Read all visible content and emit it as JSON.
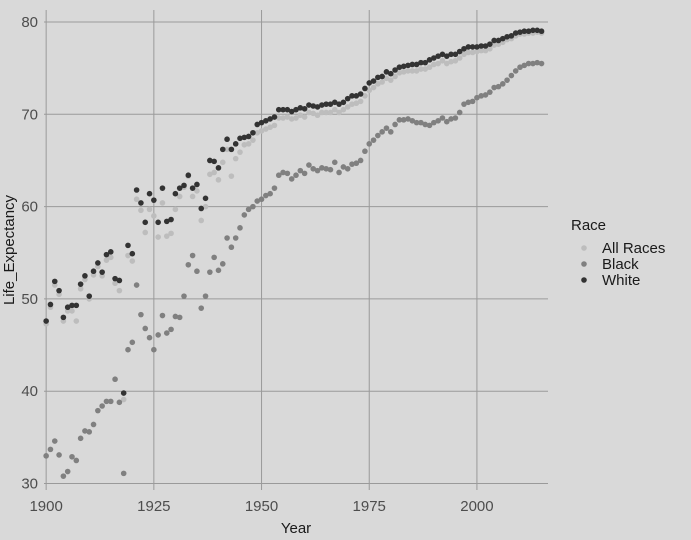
{
  "chart_data": {
    "type": "scatter",
    "title": "",
    "xlabel": "Year",
    "ylabel": "Life_Expectancy",
    "xlim": [
      1899.5,
      2016.5
    ],
    "ylim": [
      29.3,
      81.3
    ],
    "x_ticks": [
      1900,
      1925,
      1950,
      1975,
      2000
    ],
    "y_ticks": [
      30,
      40,
      50,
      60,
      70,
      80
    ],
    "grid": true,
    "legend": {
      "title": "Race",
      "position": "right"
    },
    "series": [
      {
        "name": "All Races",
        "color": "#bdbdbd",
        "x": [
          1900,
          1901,
          1902,
          1903,
          1904,
          1905,
          1906,
          1907,
          1908,
          1909,
          1910,
          1911,
          1912,
          1913,
          1914,
          1915,
          1916,
          1917,
          1918,
          1919,
          1920,
          1921,
          1922,
          1923,
          1924,
          1925,
          1926,
          1927,
          1928,
          1929,
          1930,
          1931,
          1932,
          1933,
          1934,
          1935,
          1936,
          1937,
          1938,
          1939,
          1940,
          1941,
          1942,
          1943,
          1944,
          1945,
          1946,
          1947,
          1948,
          1949,
          1950,
          1951,
          1952,
          1953,
          1954,
          1955,
          1956,
          1957,
          1958,
          1959,
          1960,
          1961,
          1962,
          1963,
          1964,
          1965,
          1966,
          1967,
          1968,
          1969,
          1970,
          1971,
          1972,
          1973,
          1974,
          1975,
          1976,
          1977,
          1978,
          1979,
          1980,
          1981,
          1982,
          1983,
          1984,
          1985,
          1986,
          1987,
          1988,
          1989,
          1990,
          1991,
          1992,
          1993,
          1994,
          1995,
          1996,
          1997,
          1998,
          1999,
          2000,
          2001,
          2002,
          2003,
          2004,
          2005,
          2006,
          2007,
          2008,
          2009,
          2010,
          2011,
          2012,
          2013,
          2014,
          2015
        ],
        "y": [
          47.3,
          49.1,
          51.5,
          50.5,
          47.6,
          48.7,
          48.7,
          47.6,
          51.1,
          52.1,
          50.0,
          52.6,
          53.5,
          52.5,
          54.2,
          54.5,
          51.7,
          50.9,
          39.1,
          54.7,
          54.1,
          60.8,
          59.6,
          57.2,
          59.7,
          59.0,
          56.7,
          60.4,
          56.8,
          57.1,
          59.7,
          61.1,
          62.1,
          63.3,
          61.1,
          61.7,
          58.5,
          60.0,
          63.5,
          63.7,
          62.9,
          64.8,
          66.2,
          63.3,
          65.2,
          65.9,
          66.7,
          66.8,
          67.2,
          68.0,
          68.2,
          68.4,
          68.6,
          68.8,
          69.6,
          69.6,
          69.7,
          69.5,
          69.6,
          69.9,
          69.7,
          70.2,
          70.1,
          69.9,
          70.2,
          70.2,
          70.2,
          70.5,
          70.2,
          70.5,
          70.8,
          71.1,
          71.2,
          71.4,
          72.0,
          72.6,
          72.9,
          73.3,
          73.5,
          73.9,
          73.7,
          74.1,
          74.5,
          74.6,
          74.7,
          74.7,
          74.7,
          74.9,
          74.9,
          75.1,
          75.4,
          75.5,
          75.8,
          75.5,
          75.7,
          75.8,
          76.1,
          76.5,
          76.7,
          76.7,
          76.8,
          76.9,
          76.9,
          77.1,
          77.5,
          77.6,
          77.8,
          78.1,
          78.2,
          78.5,
          78.7,
          78.7,
          78.8,
          78.8,
          78.9,
          78.8
        ]
      },
      {
        "name": "Black",
        "color": "#808080",
        "x": [
          1900,
          1901,
          1902,
          1903,
          1904,
          1905,
          1906,
          1907,
          1908,
          1909,
          1910,
          1911,
          1912,
          1913,
          1914,
          1915,
          1916,
          1917,
          1918,
          1919,
          1920,
          1921,
          1922,
          1923,
          1924,
          1925,
          1926,
          1927,
          1928,
          1929,
          1930,
          1931,
          1932,
          1933,
          1934,
          1935,
          1936,
          1937,
          1938,
          1939,
          1940,
          1941,
          1942,
          1943,
          1944,
          1945,
          1946,
          1947,
          1948,
          1949,
          1950,
          1951,
          1952,
          1953,
          1954,
          1955,
          1956,
          1957,
          1958,
          1959,
          1960,
          1961,
          1962,
          1963,
          1964,
          1965,
          1966,
          1967,
          1968,
          1969,
          1970,
          1971,
          1972,
          1973,
          1974,
          1975,
          1976,
          1977,
          1978,
          1979,
          1980,
          1981,
          1982,
          1983,
          1984,
          1985,
          1986,
          1987,
          1988,
          1989,
          1990,
          1991,
          1992,
          1993,
          1994,
          1995,
          1996,
          1997,
          1998,
          1999,
          2000,
          2001,
          2002,
          2003,
          2004,
          2005,
          2006,
          2007,
          2008,
          2009,
          2010,
          2011,
          2012,
          2013,
          2014,
          2015
        ],
        "y": [
          33.0,
          33.7,
          34.6,
          33.1,
          30.8,
          31.3,
          32.9,
          32.5,
          34.9,
          35.7,
          35.6,
          36.4,
          37.9,
          38.4,
          38.9,
          38.9,
          41.3,
          38.8,
          31.1,
          44.5,
          45.3,
          51.5,
          48.3,
          46.8,
          45.8,
          44.5,
          46.1,
          48.2,
          46.3,
          46.7,
          48.1,
          48.0,
          50.3,
          53.7,
          54.7,
          53.0,
          49.0,
          50.3,
          52.9,
          54.5,
          53.1,
          53.8,
          56.6,
          55.6,
          56.6,
          57.7,
          59.1,
          59.7,
          60.0,
          60.6,
          60.8,
          61.2,
          61.4,
          62.0,
          63.4,
          63.7,
          63.6,
          63.0,
          63.4,
          63.9,
          63.6,
          64.5,
          64.1,
          63.9,
          64.2,
          64.1,
          64.0,
          64.8,
          63.7,
          64.3,
          64.1,
          64.6,
          64.7,
          65.0,
          66.0,
          66.8,
          67.2,
          67.7,
          68.1,
          68.5,
          68.1,
          68.9,
          69.4,
          69.4,
          69.5,
          69.3,
          69.1,
          69.1,
          68.9,
          68.8,
          69.1,
          69.3,
          69.6,
          69.2,
          69.5,
          69.6,
          70.2,
          71.1,
          71.3,
          71.4,
          71.8,
          72.0,
          72.1,
          72.4,
          72.9,
          73.0,
          73.3,
          73.7,
          74.2,
          74.7,
          75.1,
          75.3,
          75.5,
          75.5,
          75.6,
          75.5
        ]
      },
      {
        "name": "White",
        "color": "#333333",
        "x": [
          1900,
          1901,
          1902,
          1903,
          1904,
          1905,
          1906,
          1907,
          1908,
          1909,
          1910,
          1911,
          1912,
          1913,
          1914,
          1915,
          1916,
          1917,
          1918,
          1919,
          1920,
          1921,
          1922,
          1923,
          1924,
          1925,
          1926,
          1927,
          1928,
          1929,
          1930,
          1931,
          1932,
          1933,
          1934,
          1935,
          1936,
          1937,
          1938,
          1939,
          1940,
          1941,
          1942,
          1943,
          1944,
          1945,
          1946,
          1947,
          1948,
          1949,
          1950,
          1951,
          1952,
          1953,
          1954,
          1955,
          1956,
          1957,
          1958,
          1959,
          1960,
          1961,
          1962,
          1963,
          1964,
          1965,
          1966,
          1967,
          1968,
          1969,
          1970,
          1971,
          1972,
          1973,
          1974,
          1975,
          1976,
          1977,
          1978,
          1979,
          1980,
          1981,
          1982,
          1983,
          1984,
          1985,
          1986,
          1987,
          1988,
          1989,
          1990,
          1991,
          1992,
          1993,
          1994,
          1995,
          1996,
          1997,
          1998,
          1999,
          2000,
          2001,
          2002,
          2003,
          2004,
          2005,
          2006,
          2007,
          2008,
          2009,
          2010,
          2011,
          2012,
          2013,
          2014,
          2015
        ],
        "y": [
          47.6,
          49.4,
          51.9,
          50.9,
          48.0,
          49.1,
          49.3,
          49.3,
          51.6,
          52.5,
          50.3,
          53.0,
          53.9,
          52.9,
          54.8,
          55.1,
          52.2,
          52.0,
          39.8,
          55.8,
          54.9,
          61.8,
          60.4,
          58.3,
          61.4,
          60.7,
          58.3,
          62.0,
          58.4,
          58.6,
          61.4,
          62.0,
          62.3,
          63.4,
          62.0,
          62.4,
          59.8,
          60.9,
          65.0,
          64.9,
          64.2,
          66.2,
          67.3,
          66.2,
          66.8,
          67.4,
          67.5,
          67.6,
          68.0,
          68.9,
          69.1,
          69.3,
          69.5,
          69.7,
          70.5,
          70.5,
          70.5,
          70.3,
          70.5,
          70.7,
          70.6,
          71.0,
          70.9,
          70.8,
          71.0,
          71.1,
          71.1,
          71.3,
          71.1,
          71.3,
          71.7,
          72.0,
          72.0,
          72.2,
          72.8,
          73.4,
          73.6,
          74.0,
          74.1,
          74.6,
          74.4,
          74.8,
          75.1,
          75.2,
          75.3,
          75.4,
          75.4,
          75.6,
          75.6,
          75.9,
          76.1,
          76.3,
          76.5,
          76.3,
          76.5,
          76.5,
          76.8,
          77.1,
          77.3,
          77.3,
          77.3,
          77.4,
          77.4,
          77.6,
          78.0,
          78.0,
          78.2,
          78.4,
          78.5,
          78.8,
          78.9,
          79.0,
          79.0,
          79.1,
          79.1,
          79.0
        ]
      }
    ]
  }
}
